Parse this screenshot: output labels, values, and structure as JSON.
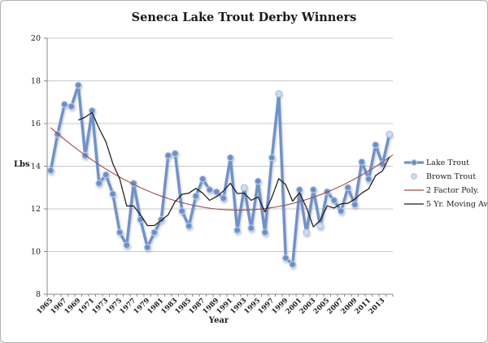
{
  "figure": {
    "title": "Seneca Lake Trout Derby Winners",
    "y_axis": {
      "title": "Lbs",
      "min": 8,
      "max": 20,
      "tick_step": 2,
      "ticks": [
        20,
        18,
        16,
        14,
        12,
        10,
        8
      ]
    },
    "x_axis": {
      "title": "Year",
      "labels": [
        "1965",
        "1967",
        "1969",
        "1971",
        "1973",
        "1975",
        "1977",
        "1979",
        "1981",
        "1983",
        "1985",
        "1987",
        "1989",
        "1991",
        "1993",
        "1995",
        "1997",
        "1999",
        "2001",
        "2003",
        "2005",
        "2007",
        "2009",
        "2011",
        "2013"
      ]
    },
    "legend": [
      {
        "label": "Lake Trout",
        "type": "line-marker",
        "color": "#7191c8"
      },
      {
        "label": "Brown Trout",
        "type": "marker",
        "color": "#cfddef"
      },
      {
        "label": "2 Factor Poly.",
        "type": "line",
        "color": "#96524e"
      },
      {
        "label": "5 Yr. Moving Avg.",
        "type": "line",
        "color": "#1c1c1c"
      }
    ],
    "colors": {
      "lake_trout_line": "#7191c8",
      "lake_trout_marker_fill": "#6d8ec5",
      "lake_trout_marker_edge": "#b9cce7",
      "brown_trout_marker_fill": "#cfddef",
      "brown_trout_marker_edge": "#aec3e2",
      "poly_line": "#96524e",
      "moving_avg_line": "#1c1c1c",
      "gridline": "#c9c9c9",
      "axis": "#898989"
    }
  },
  "chart_data": {
    "type": "line",
    "title": "Seneca Lake Trout Derby Winners",
    "xlabel": "Year",
    "ylabel": "Lbs",
    "ylim": [
      8,
      20
    ],
    "grid": "horizontal-only",
    "legend_position": "right",
    "years": [
      1965,
      1966,
      1967,
      1968,
      1969,
      1970,
      1971,
      1972,
      1973,
      1974,
      1975,
      1976,
      1977,
      1978,
      1979,
      1980,
      1981,
      1982,
      1983,
      1984,
      1985,
      1986,
      1987,
      1988,
      1989,
      1990,
      1991,
      1992,
      1993,
      1994,
      1995,
      1996,
      1997,
      1998,
      1999,
      2000,
      2001,
      2002,
      2003,
      2004,
      2005,
      2006,
      2007,
      2008,
      2009,
      2010,
      2011,
      2012,
      2013,
      2014
    ],
    "winning_weight_lbs": [
      13.8,
      15.5,
      16.9,
      16.8,
      17.8,
      14.5,
      16.6,
      13.2,
      13.6,
      12.7,
      10.9,
      10.3,
      13.2,
      11.5,
      10.2,
      10.9,
      11.5,
      14.5,
      14.6,
      11.9,
      11.2,
      12.6,
      13.4,
      12.9,
      12.8,
      12.5,
      14.4,
      11.0,
      13.0,
      11.1,
      13.3,
      10.9,
      14.4,
      17.4,
      9.7,
      9.4,
      12.9,
      10.9,
      12.9,
      11.2,
      12.8,
      12.4,
      11.9,
      13.0,
      12.2,
      14.2,
      13.4,
      15.0,
      14.1,
      15.5
    ],
    "series": [
      {
        "name": "Lake Trout",
        "kind": "data-markers-blue"
      },
      {
        "name": "Brown Trout",
        "kind": "data-markers-pale",
        "years": [
          1993,
          1998,
          2002,
          2004,
          2014
        ],
        "values": [
          13.0,
          17.4,
          10.9,
          11.2,
          15.5
        ]
      },
      {
        "name": "2 Factor Poly.",
        "kind": "quadratic-least-squares-trendline"
      },
      {
        "name": "5 Yr. Moving Avg.",
        "kind": "trailing-5yr-moving-average"
      }
    ]
  }
}
